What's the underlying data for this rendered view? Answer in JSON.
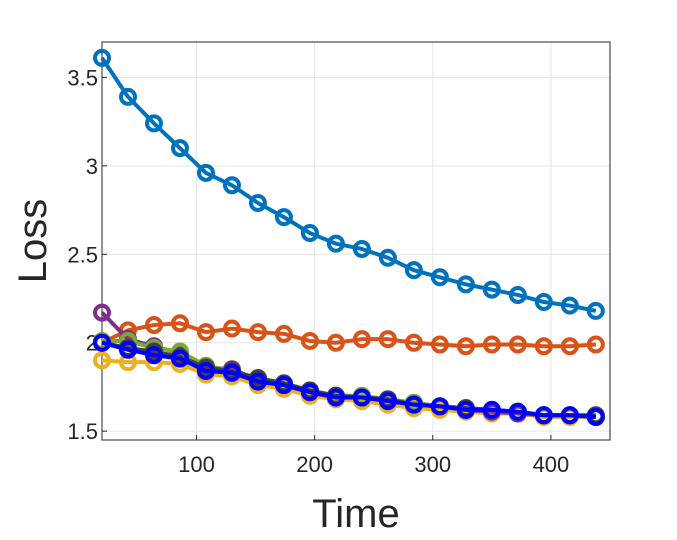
{
  "chart_data": {
    "type": "line",
    "xlabel": "Time",
    "ylabel": "Loss",
    "xlim": [
      20,
      450
    ],
    "ylim": [
      1.45,
      3.7
    ],
    "xticks": [
      100,
      200,
      300,
      400
    ],
    "yticks": [
      1.5,
      2,
      2.5,
      3,
      3.5
    ],
    "xtick_labels": [
      "100",
      "200",
      "300",
      "400"
    ],
    "ytick_labels": [
      "1.5",
      "2",
      "2.5",
      "3",
      "3.5"
    ],
    "grid": true,
    "marker": "circle",
    "x": [
      20,
      42,
      64,
      86,
      108,
      130,
      152,
      174,
      196,
      218,
      240,
      262,
      284,
      306,
      328,
      350,
      372,
      394,
      416,
      438
    ],
    "series": [
      {
        "color": "#0072BD",
        "values": [
          3.61,
          3.39,
          3.24,
          3.1,
          2.96,
          2.89,
          2.79,
          2.71,
          2.62,
          2.56,
          2.53,
          2.48,
          2.41,
          2.37,
          2.33,
          2.3,
          2.27,
          2.23,
          2.21,
          2.18
        ]
      },
      {
        "color": "#D95319",
        "values": [
          2.0,
          2.07,
          2.1,
          2.11,
          2.06,
          2.08,
          2.06,
          2.05,
          2.01,
          2.0,
          2.02,
          2.02,
          2.0,
          1.99,
          1.98,
          1.99,
          1.99,
          1.98,
          1.98,
          1.99
        ]
      },
      {
        "color": "#EDB120",
        "values": [
          1.9,
          1.89,
          1.89,
          1.88,
          1.82,
          1.81,
          1.76,
          1.74,
          1.7,
          1.68,
          1.67,
          1.65,
          1.63,
          1.62,
          1.61,
          1.6,
          1.6,
          1.58,
          1.58,
          1.58
        ]
      },
      {
        "color": "#7E2F8E",
        "values": [
          2.17,
          2.02,
          1.98,
          1.94,
          1.86,
          1.85,
          1.79,
          1.77,
          1.73,
          1.7,
          1.69,
          1.68,
          1.66,
          1.64,
          1.62,
          1.61,
          1.6,
          1.59,
          1.59,
          1.58
        ]
      },
      {
        "color": "#77AC30",
        "values": [
          2.01,
          2.01,
          1.97,
          1.95,
          1.87,
          1.84,
          1.8,
          1.77,
          1.73,
          1.7,
          1.7,
          1.68,
          1.66,
          1.64,
          1.63,
          1.62,
          1.61,
          1.59,
          1.59,
          1.58
        ]
      },
      {
        "color": "#404040",
        "values": [
          2.0,
          1.97,
          1.95,
          1.92,
          1.86,
          1.84,
          1.8,
          1.77,
          1.73,
          1.7,
          1.69,
          1.68,
          1.65,
          1.64,
          1.63,
          1.62,
          1.61,
          1.59,
          1.59,
          1.59
        ]
      },
      {
        "color": "#0000FF",
        "values": [
          2.0,
          1.96,
          1.93,
          1.91,
          1.84,
          1.83,
          1.78,
          1.76,
          1.72,
          1.69,
          1.69,
          1.67,
          1.65,
          1.64,
          1.62,
          1.62,
          1.61,
          1.59,
          1.59,
          1.58
        ]
      }
    ]
  }
}
